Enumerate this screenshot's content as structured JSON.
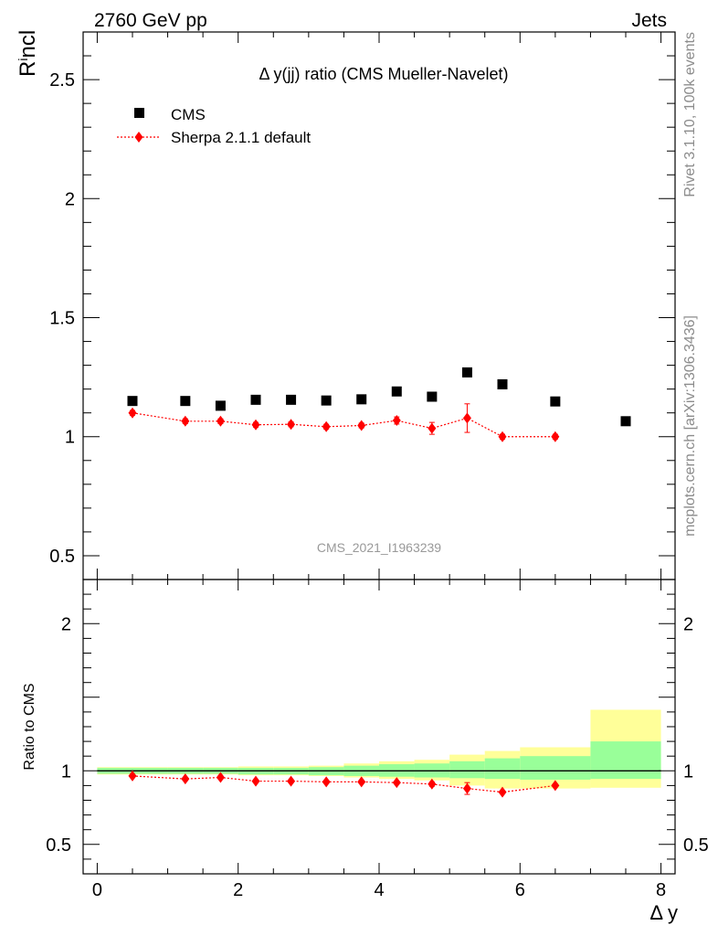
{
  "header": {
    "left": "2760 GeV pp",
    "right": "Jets"
  },
  "side_labels": {
    "rivet": "Rivet 3.1.10,  100k events",
    "mcplots": "mcplots.cern.ch [arXiv:1306.3436]"
  },
  "chart_data": {
    "type": "scatter",
    "title": "Δ y(jj) ratio (CMS Mueller-Navelet)",
    "xlabel": "Δ y",
    "ylabel": "R^incl",
    "watermark": "CMS_2021_I1963239",
    "xlim": [
      -0.2,
      8.2
    ],
    "ylim_main": [
      0.4,
      2.7
    ],
    "ylim_ratio": [
      0.3,
      2.3
    ],
    "ratio_ylabel": "Ratio to CMS",
    "x_ticks_main": [],
    "x_ticks_ratio": [
      "0",
      "2",
      "4",
      "6",
      "8"
    ],
    "y_ticks_main": [
      "0.5",
      "1",
      "1.5",
      "2",
      "2.5"
    ],
    "y_ticks_ratio": [
      "0.5",
      "1",
      "2"
    ],
    "series": [
      {
        "name": "CMS",
        "color": "#000000",
        "marker": "square",
        "x": [
          0.5,
          1.25,
          1.75,
          2.25,
          2.75,
          3.25,
          3.75,
          4.25,
          4.75,
          5.25,
          5.75,
          6.5,
          7.5
        ],
        "y": [
          1.15,
          1.15,
          1.13,
          1.155,
          1.155,
          1.152,
          1.157,
          1.19,
          1.168,
          1.27,
          1.22,
          1.148,
          1.065
        ]
      },
      {
        "name": "Sherpa 2.1.1 default",
        "color": "#ff0000",
        "marker": "diamond",
        "x": [
          0.5,
          1.25,
          1.75,
          2.25,
          2.75,
          3.25,
          3.75,
          4.25,
          4.75,
          5.25,
          5.75,
          6.5
        ],
        "y": [
          1.1,
          1.065,
          1.065,
          1.05,
          1.052,
          1.042,
          1.047,
          1.068,
          1.035,
          1.078,
          1.0,
          1.0
        ],
        "yerr": [
          0.01,
          0.01,
          0.01,
          0.01,
          0.01,
          0.01,
          0.01,
          0.015,
          0.025,
          0.06,
          0.01,
          0.01
        ]
      }
    ],
    "ratio": {
      "x": [
        0.5,
        1.25,
        1.75,
        2.25,
        2.75,
        3.25,
        3.75,
        4.25,
        4.75,
        5.25,
        5.75,
        6.5
      ],
      "y": [
        0.965,
        0.945,
        0.955,
        0.93,
        0.93,
        0.925,
        0.925,
        0.92,
        0.91,
        0.88,
        0.855,
        0.9
      ],
      "yerr": [
        0.01,
        0.01,
        0.01,
        0.01,
        0.01,
        0.01,
        0.01,
        0.01,
        0.015,
        0.04,
        0.01,
        0.01
      ]
    },
    "bands": {
      "bins": [
        [
          0,
          1
        ],
        [
          1,
          1.5
        ],
        [
          1.5,
          2
        ],
        [
          2,
          2.5
        ],
        [
          2.5,
          3
        ],
        [
          3,
          3.5
        ],
        [
          3.5,
          4
        ],
        [
          4,
          4.5
        ],
        [
          4.5,
          5
        ],
        [
          5,
          5.5
        ],
        [
          5.5,
          6
        ],
        [
          6,
          7
        ],
        [
          7,
          8
        ]
      ],
      "green": [
        [
          0.98,
          1.02
        ],
        [
          0.98,
          1.02
        ],
        [
          0.98,
          1.02
        ],
        [
          0.975,
          1.02
        ],
        [
          0.975,
          1.02
        ],
        [
          0.97,
          1.025
        ],
        [
          0.965,
          1.035
        ],
        [
          0.96,
          1.045
        ],
        [
          0.955,
          1.05
        ],
        [
          0.95,
          1.065
        ],
        [
          0.945,
          1.085
        ],
        [
          0.94,
          1.1
        ],
        [
          0.945,
          1.2
        ]
      ],
      "yellow": [
        [
          0.975,
          1.025
        ],
        [
          0.975,
          1.025
        ],
        [
          0.975,
          1.025
        ],
        [
          0.97,
          1.03
        ],
        [
          0.97,
          1.03
        ],
        [
          0.965,
          1.035
        ],
        [
          0.955,
          1.05
        ],
        [
          0.945,
          1.065
        ],
        [
          0.935,
          1.075
        ],
        [
          0.9,
          1.11
        ],
        [
          0.88,
          1.135
        ],
        [
          0.88,
          1.16
        ],
        [
          0.885,
          1.415
        ]
      ],
      "green_color": "#99ff99",
      "yellow_color": "#ffff99"
    }
  }
}
